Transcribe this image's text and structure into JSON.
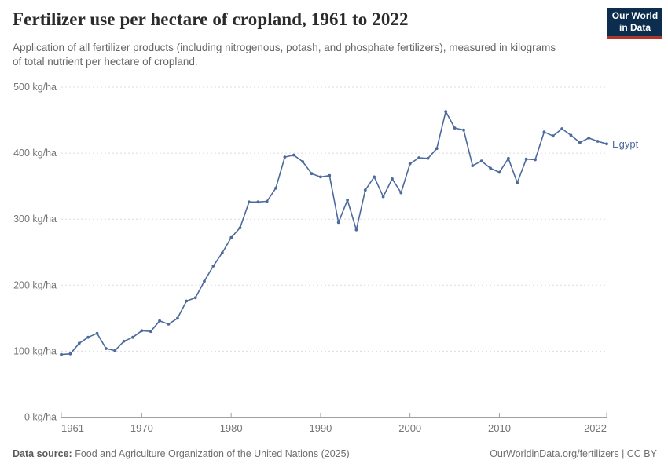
{
  "header": {
    "title": "Fertilizer use per hectare of cropland, 1961 to 2022",
    "subtitle": "Application of all fertilizer products (including nitrogenous, potash, and phosphate fertilizers), measured in kilograms of total nutrient per hectare of cropland.",
    "logo_line1": "Our World",
    "logo_line2": "in Data"
  },
  "footer": {
    "source_label": "Data source:",
    "source_text": " Food and Agriculture Organization of the United Nations (2025)",
    "credit": "OurWorldinData.org/fertilizers | CC BY"
  },
  "colors": {
    "line": "#4C6A9C",
    "grid": "#dcdcdc",
    "axis": "#a1a1a1",
    "tick_text": "#757575",
    "logo_bg": "#0C2D4E",
    "logo_accent": "#B0352B"
  },
  "chart_data": {
    "type": "line",
    "title": "Fertilizer use per hectare of cropland, 1961 to 2022",
    "xlabel": "",
    "ylabel": "kg/ha",
    "x_range": [
      1961,
      2022
    ],
    "ylim": [
      0,
      500
    ],
    "grid": "horizontal-dashed",
    "legend_position": "end-of-line-label",
    "x_ticks": [
      1961,
      1970,
      1980,
      1990,
      2000,
      2010,
      2022
    ],
    "y_ticks": [
      {
        "value": 0,
        "label": "0 kg/ha"
      },
      {
        "value": 100,
        "label": "100 kg/ha"
      },
      {
        "value": 200,
        "label": "200 kg/ha"
      },
      {
        "value": 300,
        "label": "300 kg/ha"
      },
      {
        "value": 400,
        "label": "400 kg/ha"
      },
      {
        "value": 500,
        "label": "500 kg/ha"
      }
    ],
    "series": [
      {
        "name": "Egypt",
        "color": "#4C6A9C",
        "start_year": 1961,
        "years": [
          1961,
          1962,
          1963,
          1964,
          1965,
          1966,
          1967,
          1968,
          1969,
          1970,
          1971,
          1972,
          1973,
          1974,
          1975,
          1976,
          1977,
          1978,
          1979,
          1980,
          1981,
          1982,
          1983,
          1984,
          1985,
          1986,
          1987,
          1988,
          1989,
          1990,
          1991,
          1992,
          1993,
          1994,
          1995,
          1996,
          1997,
          1998,
          1999,
          2000,
          2001,
          2002,
          2003,
          2004,
          2005,
          2006,
          2007,
          2008,
          2009,
          2010,
          2011,
          2012,
          2013,
          2014,
          2015,
          2016,
          2017,
          2018,
          2019,
          2020,
          2021,
          2022
        ],
        "values": [
          95,
          96,
          112,
          121,
          127,
          104,
          101,
          115,
          121,
          131,
          130,
          146,
          141,
          150,
          176,
          181,
          206,
          229,
          249,
          272,
          287,
          326,
          326,
          327,
          347,
          394,
          397,
          387,
          369,
          364,
          366,
          295,
          329,
          284,
          344,
          364,
          334,
          361,
          340,
          384,
          393,
          392,
          407,
          463,
          438,
          435,
          381,
          388,
          377,
          371,
          392,
          355,
          391,
          390,
          432,
          426,
          437,
          427,
          416,
          423,
          418,
          414
        ]
      }
    ]
  }
}
